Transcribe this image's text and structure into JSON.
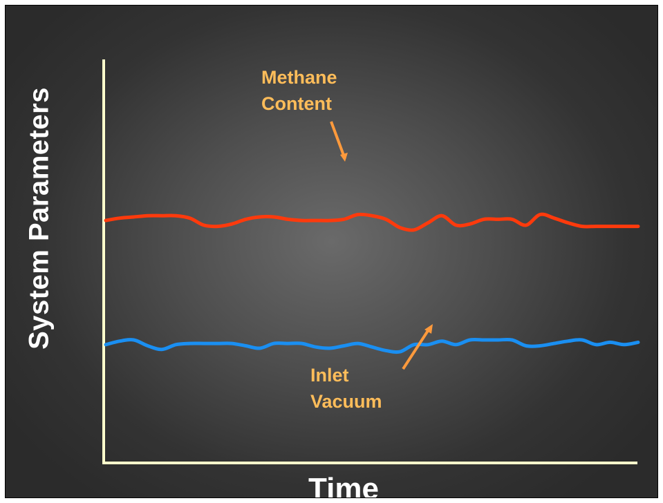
{
  "chart_data": {
    "type": "line",
    "xlabel": "Time",
    "ylabel": "System Parameters",
    "ticks_shown": false,
    "grid": false,
    "series": [
      {
        "name": "Methane Content",
        "color": "#ff3a0c",
        "values": [
          2.05,
          2.07,
          2.08,
          2.09,
          2.09,
          2.09,
          2.07,
          2.01,
          2.0,
          2.02,
          2.06,
          2.08,
          2.08,
          2.06,
          2.05,
          2.05,
          2.05,
          2.06,
          2.1,
          2.09,
          2.06,
          1.99,
          1.97,
          2.03,
          2.09,
          2.01,
          2.02,
          2.06,
          2.06,
          2.06,
          2.01,
          2.1,
          2.07,
          2.03,
          2.0,
          2.0,
          2.0,
          2.0,
          2.0
        ]
      },
      {
        "name": "Inlet Vacuum",
        "color": "#1a8ff2",
        "values": [
          1.0,
          1.03,
          1.04,
          0.99,
          0.96,
          1.0,
          1.01,
          1.01,
          1.01,
          1.01,
          0.99,
          0.97,
          1.01,
          1.01,
          1.01,
          0.98,
          0.97,
          0.99,
          1.01,
          0.98,
          0.95,
          0.94,
          1.0,
          1.0,
          1.03,
          1.0,
          1.04,
          1.04,
          1.04,
          1.04,
          0.99,
          0.99,
          1.01,
          1.03,
          1.04,
          1.0,
          1.02,
          1.0,
          1.02
        ]
      }
    ],
    "annotations": [
      {
        "series": "Methane Content",
        "lines": [
          "Methane",
          "Content"
        ],
        "color": "#ffbd5a"
      },
      {
        "series": "Inlet Vacuum",
        "lines": [
          "Inlet",
          "Vacuum"
        ],
        "color": "#ffbd5a"
      }
    ],
    "axis_color": "#ffffcc",
    "arrow_color": "#ff9a3c"
  }
}
